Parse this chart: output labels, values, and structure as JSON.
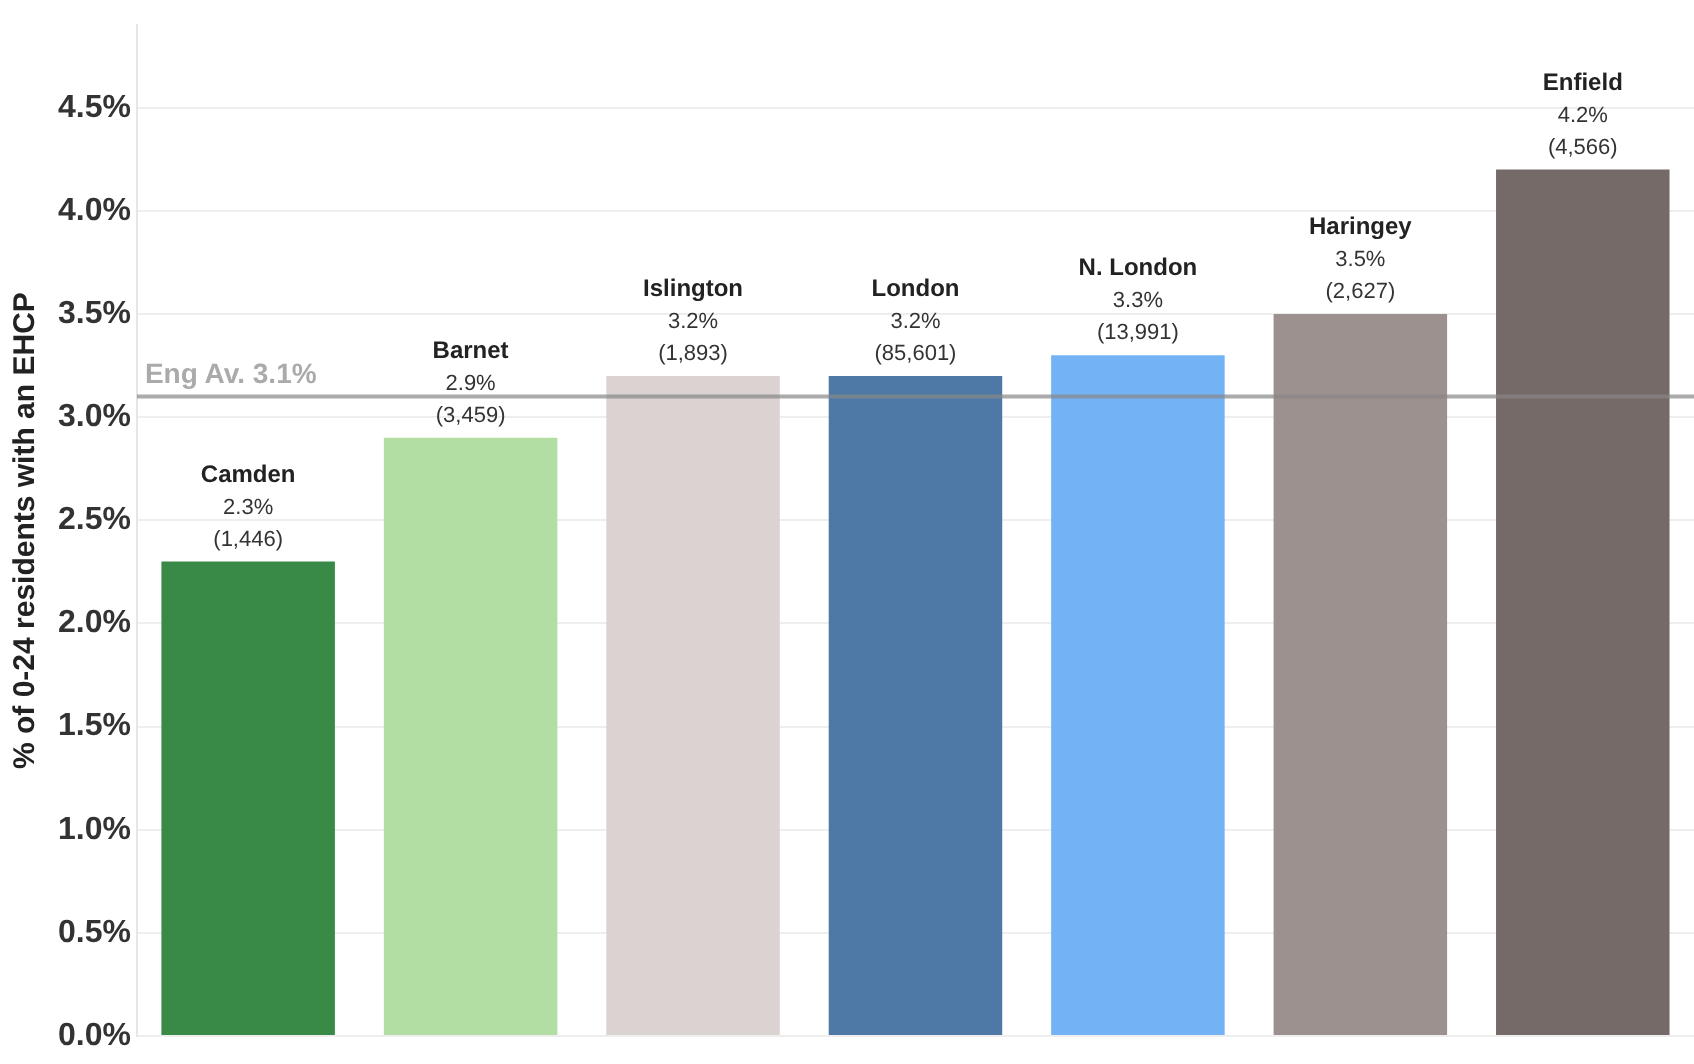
{
  "chart_data": {
    "type": "bar",
    "ylabel": "% of 0-24 residents with an EHCP",
    "categories": [
      "Camden",
      "Barnet",
      "Islington",
      "London",
      "N. London",
      "Haringey",
      "Enfield"
    ],
    "values": [
      2.3,
      2.9,
      3.2,
      3.2,
      3.3,
      3.5,
      4.2
    ],
    "colors": [
      "#3a8a47",
      "#b3dea3",
      "#dbd3d1",
      "#4e79a7",
      "#73b3f5",
      "#9c918e",
      "#756a67"
    ],
    "value_labels": [
      "2.3% (1,446)",
      "2.9% (3,459)",
      "3.2% (1,893)",
      "3.2% (85,601)",
      "3.3% (13,991)",
      "3.5% (2,627)",
      "4.2% (4,566)"
    ],
    "ylim": [
      0,
      4.9
    ],
    "yticks": [
      {
        "value": 0,
        "label": "0.0%"
      },
      {
        "value": 0.5,
        "label": "0.5%"
      },
      {
        "value": 1,
        "label": "1.0%"
      },
      {
        "value": 1.5,
        "label": "1.5%"
      },
      {
        "value": 2,
        "label": "2.0%"
      },
      {
        "value": 2.5,
        "label": "2.5%"
      },
      {
        "value": 3,
        "label": "3.0%"
      },
      {
        "value": 3.5,
        "label": "3.5%"
      },
      {
        "value": 4,
        "label": "4.0%"
      },
      {
        "value": 4.5,
        "label": "4.5%"
      }
    ],
    "ref_lines": [
      {
        "axis": "y",
        "value": 3.1,
        "label": "Eng Av. 3.1%",
        "color": "#888888"
      }
    ],
    "grid": "y",
    "tick_labels": "y",
    "legend": false
  }
}
